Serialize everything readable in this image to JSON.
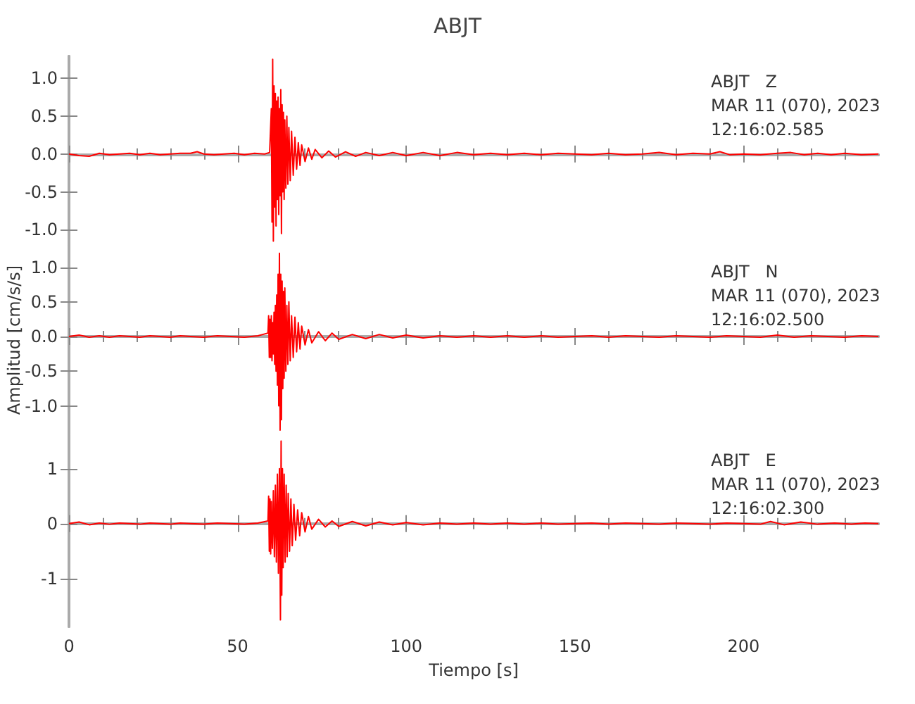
{
  "chart_data": [
    {
      "type": "line",
      "title": "ABJT",
      "xlim": [
        0,
        240
      ],
      "xticks": [
        0,
        50,
        100,
        150,
        200
      ],
      "ylim": [
        -1.22,
        1.29
      ],
      "yticks": [
        {
          "value": -1,
          "label": "-1.0"
        },
        {
          "value": -0.5,
          "label": "-0.5"
        },
        {
          "value": 0,
          "label": "0.0"
        },
        {
          "value": 0.5,
          "label": "0.5"
        },
        {
          "value": 1,
          "label": "1.0"
        }
      ],
      "tick_labels": "y",
      "annotations": [
        "ABJT   Z",
        "MAR 11 (070), 2023",
        "12:16:02.585"
      ],
      "series": [
        {
          "color": "#ff0000",
          "x": [
            0,
            3,
            6,
            9,
            12,
            15,
            18,
            21,
            24,
            27,
            30,
            33,
            36,
            38,
            40,
            43,
            46,
            49,
            52,
            55,
            58,
            59.5,
            60,
            60.2,
            60.4,
            60.6,
            60.8,
            61,
            61.2,
            61.4,
            61.6,
            61.8,
            62,
            62.2,
            62.4,
            62.6,
            62.8,
            63,
            63.2,
            63.4,
            63.6,
            63.8,
            64,
            64.3,
            64.6,
            64.9,
            65.2,
            65.6,
            66,
            66.5,
            67,
            67.5,
            68,
            68.5,
            69,
            70,
            71,
            72,
            73,
            75,
            77,
            79,
            82,
            85,
            88,
            92,
            96,
            100,
            105,
            110,
            115,
            120,
            125,
            130,
            135,
            140,
            145,
            150,
            155,
            160,
            165,
            170,
            175,
            180,
            185,
            190,
            193,
            196,
            200,
            205,
            210,
            214,
            218,
            222,
            226,
            230,
            235,
            240
          ],
          "values": [
            0,
            -0.02,
            -0.03,
            0.01,
            -0.01,
            0,
            0.01,
            -0.01,
            0.01,
            -0.01,
            0,
            0.01,
            0.01,
            0.03,
            0,
            -0.01,
            0,
            0.01,
            -0.01,
            0.01,
            0,
            0.02,
            0.6,
            -0.9,
            1.25,
            -1.15,
            0.9,
            -0.7,
            0.8,
            -0.95,
            0.7,
            -0.6,
            0.75,
            -0.8,
            0.6,
            -0.55,
            0.85,
            -1.05,
            0.65,
            -0.5,
            0.55,
            -0.6,
            0.45,
            -0.45,
            0.5,
            -0.4,
            0.35,
            -0.35,
            0.3,
            -0.28,
            0.22,
            -0.2,
            0.15,
            -0.15,
            0.12,
            -0.1,
            0.08,
            -0.07,
            0.06,
            -0.05,
            0.04,
            -0.04,
            0.03,
            -0.03,
            0.02,
            -0.02,
            0.02,
            -0.02,
            0.02,
            -0.02,
            0.02,
            -0.01,
            0.01,
            -0.01,
            0.01,
            -0.01,
            0.01,
            0,
            -0.01,
            0.01,
            -0.01,
            0,
            0.02,
            -0.01,
            0.01,
            0,
            0.03,
            -0.01,
            0,
            -0.01,
            0.01,
            0.02,
            -0.01,
            0.01,
            -0.01,
            0.01,
            -0.01,
            0
          ]
        }
      ]
    },
    {
      "type": "line",
      "ylabel": "Amplitud [cm/s/s]",
      "xlim": [
        0,
        240
      ],
      "xticks": [
        0,
        50,
        100,
        150,
        200
      ],
      "ylim": [
        -1.4,
        1.3
      ],
      "yticks": [
        {
          "value": -1,
          "label": "-1.0"
        },
        {
          "value": -0.5,
          "label": "-0.5"
        },
        {
          "value": 0,
          "label": "0.0"
        },
        {
          "value": 0.5,
          "label": "0.5"
        },
        {
          "value": 1,
          "label": "1.0"
        }
      ],
      "tick_labels": "y",
      "annotations": [
        "ABJT   N",
        "MAR 11 (070), 2023",
        "12:16:02.500"
      ],
      "series": [
        {
          "color": "#ff0000",
          "x": [
            0,
            3,
            6,
            9,
            12,
            15,
            18,
            21,
            24,
            27,
            30,
            33,
            36,
            40,
            44,
            48,
            52,
            56,
            59,
            59.2,
            59.4,
            59.6,
            59.8,
            60,
            60.2,
            60.4,
            60.6,
            60.8,
            61,
            61.2,
            61.4,
            61.6,
            61.8,
            62,
            62.2,
            62.4,
            62.6,
            62.8,
            63,
            63.2,
            63.4,
            63.6,
            63.8,
            64,
            64.3,
            64.6,
            64.9,
            65.2,
            65.6,
            66,
            66.5,
            67,
            67.5,
            68,
            68.5,
            69,
            70,
            71,
            72,
            74,
            76,
            78,
            80,
            84,
            88,
            92,
            96,
            100,
            105,
            110,
            115,
            120,
            125,
            130,
            135,
            140,
            145,
            150,
            155,
            160,
            165,
            170,
            175,
            180,
            185,
            190,
            195,
            200,
            205,
            210,
            215,
            220,
            225,
            230,
            235,
            240
          ],
          "values": [
            0,
            0.02,
            -0.01,
            0.01,
            -0.01,
            0.01,
            0,
            -0.01,
            0.01,
            0,
            -0.01,
            0.01,
            0,
            -0.01,
            0.01,
            0,
            -0.01,
            0.01,
            0.05,
            0.3,
            -0.3,
            0.25,
            -0.3,
            0.3,
            -0.35,
            0.2,
            -0.25,
            0.35,
            -0.4,
            0.45,
            -0.5,
            0.6,
            -0.7,
            0.9,
            -1,
            1.2,
            -1.35,
            0.9,
            -1.2,
            0.8,
            -0.75,
            0.65,
            -0.6,
            0.7,
            -0.5,
            0.45,
            -0.4,
            0.5,
            -0.35,
            0.3,
            -0.3,
            0.28,
            -0.22,
            0.2,
            -0.18,
            0.15,
            -0.12,
            0.1,
            -0.09,
            0.07,
            -0.06,
            0.05,
            -0.04,
            0.03,
            -0.03,
            0.03,
            -0.02,
            0.02,
            -0.02,
            0.01,
            -0.01,
            0.01,
            -0.01,
            0.01,
            -0.01,
            0.01,
            -0.01,
            0,
            0.01,
            -0.01,
            0.01,
            0,
            -0.01,
            0.01,
            0,
            -0.01,
            0.01,
            0,
            -0.01,
            0.02,
            -0.01,
            0.01,
            0,
            -0.01,
            0.01,
            0
          ]
        }
      ]
    },
    {
      "type": "line",
      "xlabel": "Tiempo [s]",
      "xlim": [
        0,
        240
      ],
      "xticks": [
        0,
        50,
        100,
        150,
        200
      ],
      "ylim": [
        -1.87,
        1.61
      ],
      "yticks": [
        -1,
        0,
        1
      ],
      "annotations": [
        "ABJT   E",
        "MAR 11 (070), 2023",
        "12:16:02.300"
      ],
      "series": [
        {
          "color": "#ff0000",
          "x": [
            0,
            3,
            6,
            9,
            12,
            15,
            18,
            21,
            24,
            27,
            30,
            33,
            36,
            40,
            44,
            48,
            52,
            56,
            59,
            59.2,
            59.4,
            59.6,
            59.8,
            60,
            60.3,
            60.6,
            60.9,
            61.2,
            61.5,
            61.8,
            62.1,
            62.4,
            62.7,
            62.9,
            63.1,
            63.3,
            63.5,
            63.8,
            64.1,
            64.4,
            64.7,
            65,
            65.4,
            65.8,
            66.2,
            66.7,
            67.2,
            67.8,
            68.4,
            69,
            70,
            71,
            72,
            74,
            76,
            78,
            80,
            84,
            88,
            92,
            96,
            100,
            105,
            110,
            115,
            120,
            125,
            130,
            135,
            140,
            145,
            150,
            155,
            160,
            165,
            170,
            175,
            180,
            185,
            190,
            195,
            200,
            205,
            208,
            212,
            217,
            222,
            227,
            232,
            236,
            240
          ],
          "values": [
            0,
            0.03,
            -0.02,
            0.01,
            -0.01,
            0.01,
            0,
            -0.01,
            0.01,
            0,
            -0.01,
            0.01,
            0,
            -0.01,
            0.01,
            0,
            -0.01,
            0.01,
            0.05,
            0.5,
            -0.5,
            0.45,
            -0.55,
            0.4,
            -0.45,
            0.6,
            -0.6,
            0.7,
            -0.7,
            0.9,
            -0.9,
            1,
            -1.75,
            1.5,
            -1.3,
            1,
            -0.8,
            0.9,
            -0.7,
            0.7,
            -0.6,
            0.55,
            -0.5,
            0.45,
            -0.4,
            0.35,
            -0.3,
            0.25,
            -0.22,
            0.2,
            -0.15,
            0.13,
            -0.1,
            0.08,
            -0.06,
            0.05,
            -0.05,
            0.04,
            -0.04,
            0.03,
            -0.02,
            0.02,
            -0.02,
            0.01,
            -0.01,
            0.01,
            -0.01,
            0.01,
            -0.01,
            0.01,
            -0.01,
            0,
            0.01,
            -0.01,
            0.01,
            0,
            -0.01,
            0.01,
            0,
            -0.01,
            0.01,
            0,
            -0.01,
            0.04,
            -0.02,
            0.03,
            -0.01,
            0.01,
            -0.01,
            0.01,
            0
          ]
        }
      ]
    }
  ]
}
